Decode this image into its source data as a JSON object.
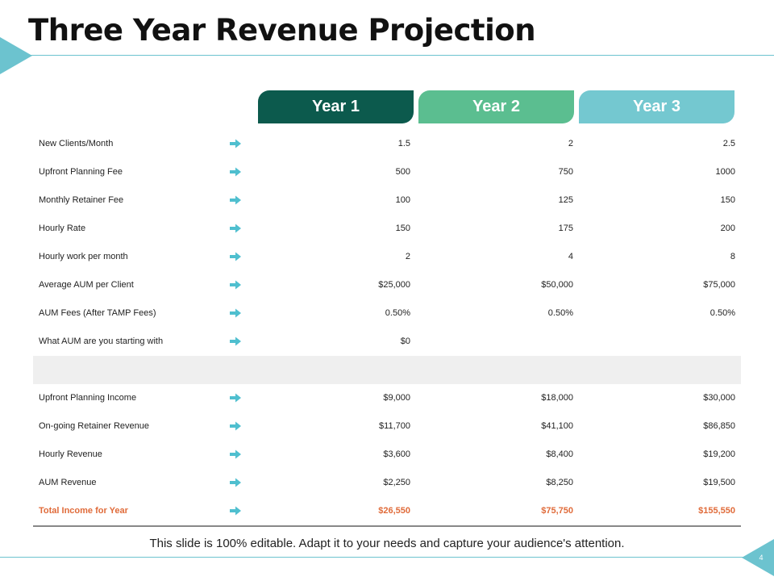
{
  "title": "Three Year Revenue Projection",
  "years": [
    "Year 1",
    "Year 2",
    "Year 3"
  ],
  "colors": {
    "accent": "#6cc3cf",
    "year1": "#0c5a4d",
    "year2": "#5bbe90",
    "year3": "#74c8d0",
    "total": "#e06b3a",
    "arrow": "#4fbfcf"
  },
  "rows": [
    {
      "label": "New Clients/Month",
      "values": [
        "1.5",
        "2",
        "2.5"
      ]
    },
    {
      "label": "Upfront Planning Fee",
      "values": [
        "500",
        "750",
        "1000"
      ]
    },
    {
      "label": "Monthly Retainer Fee",
      "values": [
        "100",
        "125",
        "150"
      ]
    },
    {
      "label": "Hourly Rate",
      "values": [
        "150",
        "175",
        "200"
      ]
    },
    {
      "label": "Hourly work per month",
      "values": [
        "2",
        "4",
        "8"
      ]
    },
    {
      "label": "Average AUM per Client",
      "values": [
        "$25,000",
        "$50,000",
        "$75,000"
      ]
    },
    {
      "label": "AUM Fees (After TAMP Fees)",
      "values": [
        "0.50%",
        "0.50%",
        "0.50%"
      ]
    },
    {
      "label": "What AUM are you starting with",
      "values": [
        "$0",
        "",
        ""
      ]
    }
  ],
  "income_rows": [
    {
      "label": "Upfront Planning Income",
      "values": [
        "$9,000",
        "$18,000",
        "$30,000"
      ]
    },
    {
      "label": "On-going Retainer Revenue",
      "values": [
        "$11,700",
        "$41,100",
        "$86,850"
      ]
    },
    {
      "label": "Hourly Revenue",
      "values": [
        "$3,600",
        "$8,400",
        "$19,200"
      ]
    },
    {
      "label": "AUM Revenue",
      "values": [
        "$2,250",
        "$8,250",
        "$19,500"
      ]
    },
    {
      "label": "Total Income for Year",
      "values": [
        "$26,550",
        "$75,750",
        "$155,550"
      ]
    }
  ],
  "footer": "This slide is 100% editable. Adapt it to your needs and capture your audience's attention.",
  "page_number": "4"
}
